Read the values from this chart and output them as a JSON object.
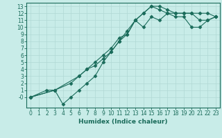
{
  "xlabel": "Humidex (Indice chaleur)",
  "bg_color": "#c8ece8",
  "grid_color": "#b0d8d4",
  "line_color": "#1a6b5a",
  "xlim": [
    -0.5,
    23.5
  ],
  "ylim": [
    -1.5,
    13.5
  ],
  "xtick_labels": [
    "0",
    "1",
    "2",
    "3",
    "4",
    "5",
    "6",
    "7",
    "8",
    "9",
    "10",
    "11",
    "12",
    "13",
    "14",
    "15",
    "16",
    "17",
    "18",
    "19",
    "20",
    "21",
    "22",
    "23"
  ],
  "xtick_vals": [
    0,
    1,
    2,
    3,
    4,
    5,
    6,
    7,
    8,
    9,
    10,
    11,
    12,
    13,
    14,
    15,
    16,
    17,
    18,
    19,
    20,
    21,
    22,
    23
  ],
  "ytick_labels": [
    "-0",
    "1",
    "2",
    "3",
    "4",
    "5",
    "6",
    "7",
    "8",
    "9",
    "10",
    "11",
    "12",
    "13"
  ],
  "ytick_vals": [
    0,
    1,
    2,
    3,
    4,
    5,
    6,
    7,
    8,
    9,
    10,
    11,
    12,
    13
  ],
  "line1_x": [
    0,
    2,
    3,
    4,
    5,
    6,
    7,
    8,
    9,
    10,
    11,
    12,
    13,
    14,
    15,
    16,
    17,
    18,
    19,
    20,
    21,
    22,
    23
  ],
  "line1_y": [
    0,
    1,
    1,
    -1,
    0,
    1,
    2,
    3,
    5,
    6.5,
    8,
    9,
    11,
    10,
    11.5,
    11,
    12,
    12,
    12,
    12,
    11,
    11,
    11.5
  ],
  "line2_x": [
    0,
    3,
    6,
    7,
    8,
    9,
    10,
    11,
    12,
    13,
    14,
    15,
    16,
    17,
    18,
    19,
    20,
    21,
    22,
    23
  ],
  "line2_y": [
    0,
    1,
    3,
    4,
    5,
    6,
    7,
    8.5,
    9,
    11,
    12,
    13,
    13,
    12.5,
    12,
    12,
    12,
    12,
    12,
    11.5
  ],
  "line3_x": [
    0,
    3,
    5,
    6,
    7,
    8,
    9,
    10,
    11,
    12,
    13,
    14,
    15,
    16,
    17,
    18,
    19,
    20,
    21,
    22,
    23
  ],
  "line3_y": [
    0,
    1,
    2,
    3,
    4,
    4.5,
    5.5,
    6.5,
    8,
    9.5,
    11,
    12,
    13,
    12.5,
    12,
    11.5,
    11.5,
    10,
    10,
    11,
    11.5
  ],
  "marker_size": 2.5,
  "line_width": 0.8,
  "tick_fontsize": 5.5,
  "xlabel_fontsize": 6.5
}
